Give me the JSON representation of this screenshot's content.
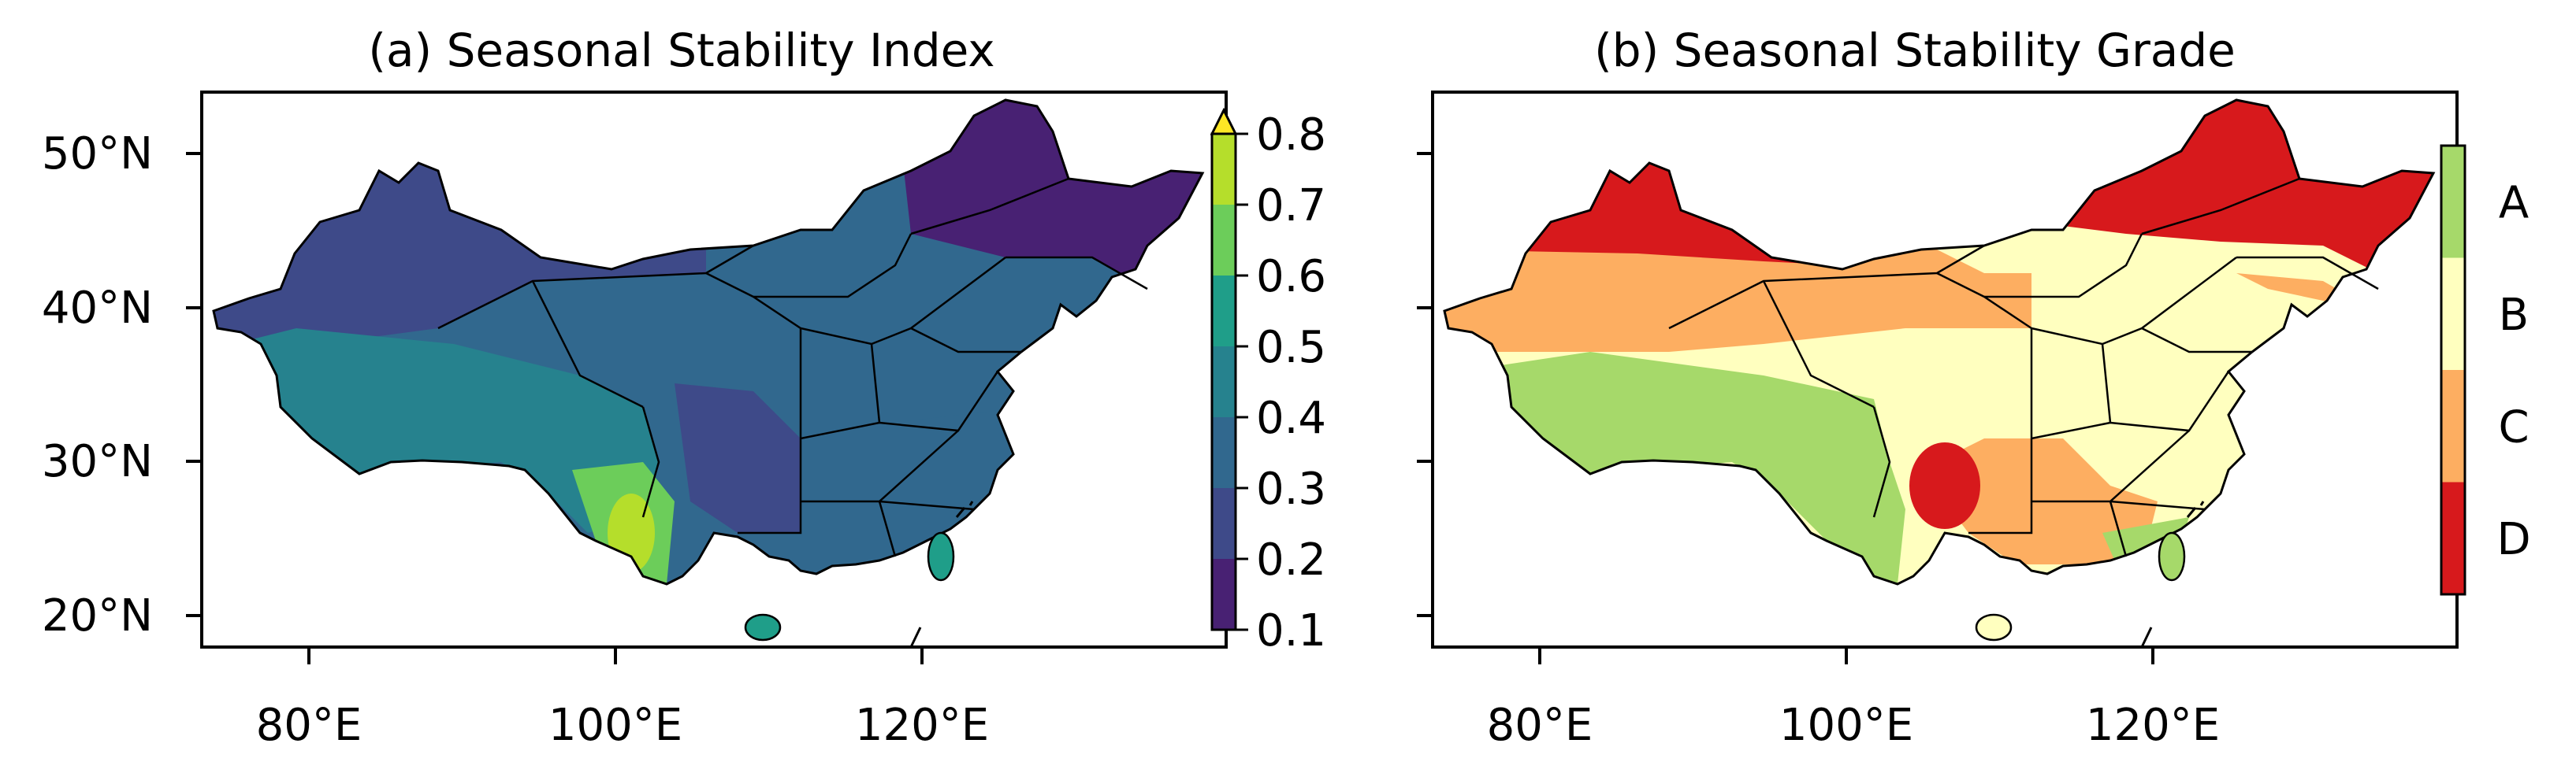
{
  "panels": [
    {
      "title": "(a) Seasonal Stability Index",
      "colorbar": {
        "type": "continuous",
        "extend": "max",
        "ticks": [
          "0.1",
          "0.2",
          "0.3",
          "0.4",
          "0.5",
          "0.6",
          "0.7",
          "0.8"
        ],
        "colors": [
          "#482173",
          "#3e4a89",
          "#31688e",
          "#26828e",
          "#1f9e89",
          "#6ccd5a",
          "#b5de2b",
          "#fde725"
        ]
      },
      "region_values": {
        "northeast": 0.18,
        "northwest": 0.33,
        "north": 0.38,
        "tibet": 0.5,
        "southwest": 0.62,
        "sichuan": 0.28,
        "south": 0.45,
        "hainan": 0.55,
        "taiwan": 0.56
      }
    },
    {
      "title": "(b) Seasonal Stability Grade",
      "colorbar": {
        "type": "categorical",
        "grades": [
          {
            "label": "A",
            "color": "#a6d96a"
          },
          {
            "label": "B",
            "color": "#ffffbf"
          },
          {
            "label": "C",
            "color": "#fdae61"
          },
          {
            "label": "D",
            "color": "#d7191c"
          }
        ]
      }
    }
  ],
  "axes": {
    "x_ticks": [
      "80°E",
      "100°E",
      "120°E"
    ],
    "y_ticks": [
      "50°N",
      "40°N",
      "30°N",
      "20°N"
    ],
    "lon_range": [
      73,
      136
    ],
    "lat_range": [
      18,
      54
    ]
  }
}
